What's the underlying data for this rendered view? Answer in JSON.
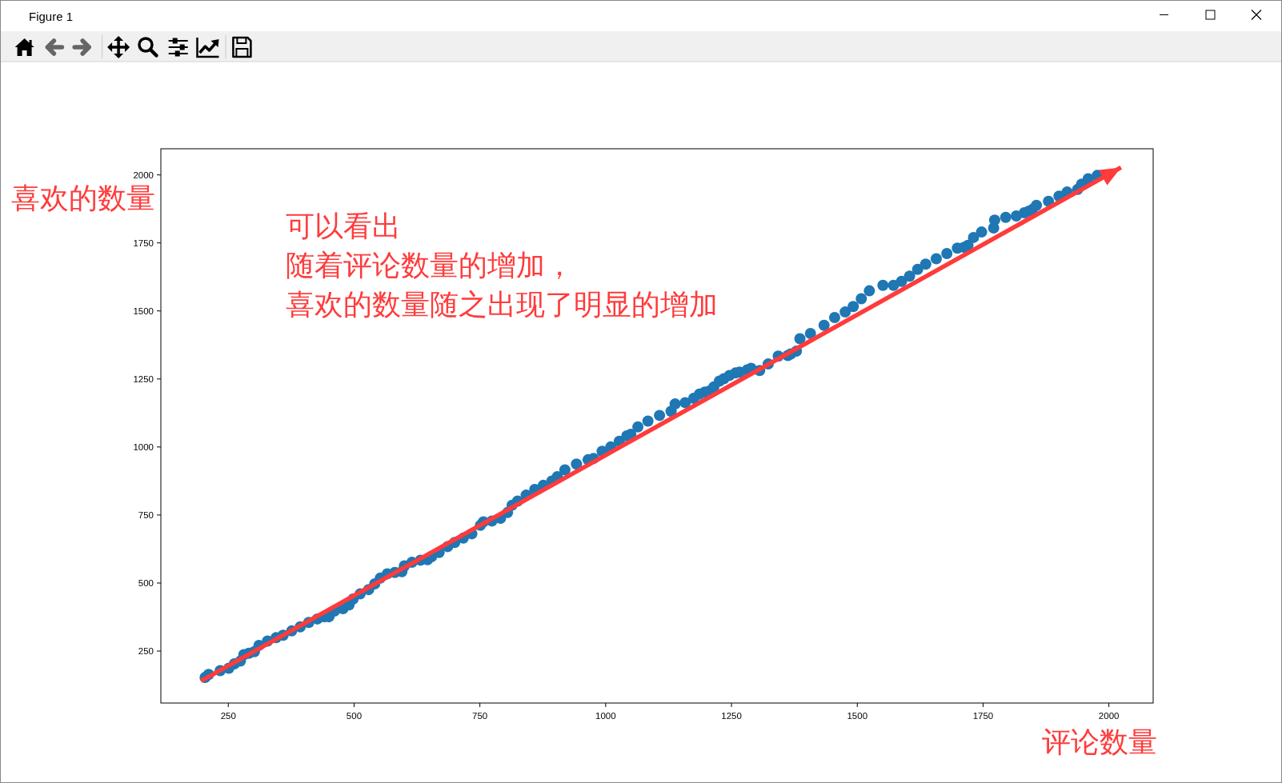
{
  "chart_data": {
    "type": "scatter",
    "xlabel": "评论数量",
    "ylabel": "喜欢的数量",
    "annotations": [
      "Figure 1",
      "可以看出",
      "随着评论数量的增加，",
      "喜欢的数量随之出现了明显的增加"
    ],
    "x": [
      204,
      211,
      234,
      251,
      262,
      274,
      281,
      291,
      302,
      311,
      328,
      345,
      359,
      376,
      393,
      410,
      427,
      441,
      450,
      461,
      478,
      490,
      498,
      512,
      529,
      541,
      552,
      566,
      581,
      595,
      600,
      615,
      632,
      646,
      654,
      669,
      686,
      700,
      717,
      734,
      751,
      757,
      774,
      791,
      805,
      814,
      825,
      842,
      859,
      876,
      893,
      904,
      919,
      942,
      965,
      976,
      993,
      1010,
      1027,
      1042,
      1050,
      1064,
      1084,
      1107,
      1130,
      1138,
      1158,
      1175,
      1186,
      1197,
      1206,
      1215,
      1226,
      1235,
      1246,
      1258,
      1266,
      1281,
      1289,
      1306,
      1323,
      1343,
      1362,
      1368,
      1379,
      1386,
      1407,
      1434,
      1455,
      1476,
      1492,
      1508,
      1524,
      1551,
      1572,
      1588,
      1604,
      1620,
      1636,
      1657,
      1678,
      1699,
      1712,
      1720,
      1731,
      1747,
      1771,
      1773,
      1795,
      1816,
      1832,
      1841,
      1848,
      1856,
      1880,
      1901,
      1917,
      1938,
      1946,
      1959,
      1977
    ],
    "series": [
      {
        "marker": "circle",
        "color": "#1f77b4",
        "values": [
          153,
          164,
          178,
          187,
          203,
          213,
          237,
          242,
          248,
          271,
          287,
          299,
          308,
          324,
          339,
          355,
          368,
          376,
          376,
          397,
          406,
          420,
          441,
          460,
          476,
          497,
          518,
          534,
          539,
          542,
          563,
          576,
          584,
          586,
          597,
          612,
          634,
          649,
          665,
          681,
          712,
          725,
          728,
          738,
          759,
          786,
          801,
          823,
          844,
          859,
          875,
          891,
          916,
          937,
          953,
          958,
          984,
          1000,
          1021,
          1041,
          1047,
          1074,
          1095,
          1116,
          1131,
          1158,
          1163,
          1179,
          1194,
          1202,
          1205,
          1221,
          1242,
          1251,
          1263,
          1272,
          1275,
          1283,
          1289,
          1281,
          1305,
          1334,
          1336,
          1342,
          1352,
          1398,
          1417,
          1447,
          1476,
          1496,
          1516,
          1545,
          1574,
          1594,
          1594,
          1609,
          1628,
          1653,
          1672,
          1692,
          1711,
          1731,
          1734,
          1741,
          1770,
          1790,
          1805,
          1834,
          1844,
          1849,
          1861,
          1867,
          1873,
          1888,
          1903,
          1922,
          1937,
          1947,
          1966,
          1986,
          1998
        ]
      },
      {
        "type": "line",
        "color": "#ff3b3b",
        "x": [
          196,
          2024
        ],
        "values": [
          140,
          2027
        ]
      }
    ],
    "xlim": [
      116,
      2088
    ],
    "ylim": [
      59,
      2096
    ],
    "xticks": [
      250,
      500,
      750,
      1000,
      1250,
      1500,
      1750,
      2000
    ],
    "yticks": [
      250,
      500,
      750,
      1000,
      1250,
      1500,
      1750,
      2000
    ]
  }
}
